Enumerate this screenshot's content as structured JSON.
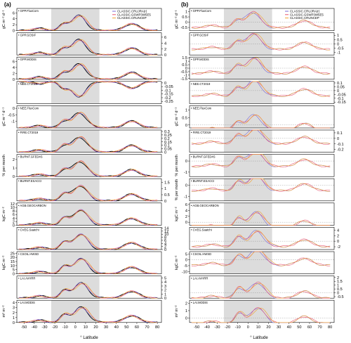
{
  "figure": {
    "panels": [
      {
        "id": "a",
        "label": "(a)"
      },
      {
        "id": "b",
        "label": "(b)"
      }
    ],
    "xlabel": "° Latitude",
    "xticks": [
      -50,
      -40,
      -30,
      -20,
      -10,
      0,
      10,
      20,
      30,
      40,
      50,
      60,
      70,
      80
    ],
    "xlim": [
      -57,
      84
    ],
    "shaded_region": [
      -23.5,
      23.5
    ],
    "shade_color": "#dcdcdc",
    "legend": [
      "CLASSIC.CRUJRA(r)",
      "CLASSIC.GSWP3W5E5",
      "CLASSIC.CRUNCEP"
    ],
    "colors": {
      "obs": "#000000",
      "s1": "#7b68d6",
      "s2": "#e8556f",
      "s3": "#f0a030"
    }
  },
  "chart_data": [
    {
      "type": "line",
      "panel": "a",
      "rows": [
        {
          "title": "GPP.FluxCom",
          "yticks": [
            0,
            2,
            4,
            6
          ],
          "ylim": [
            0,
            7.5
          ],
          "side": "left",
          "unit": "gC m⁻² d⁻¹"
        },
        {
          "title": "GPP.GOSIF",
          "yticks": [
            0,
            2,
            4,
            6
          ],
          "ylim": [
            0,
            7.5
          ],
          "side": "right",
          "unit": ""
        },
        {
          "title": "GPP.MODIS",
          "yticks": [
            0,
            2,
            4,
            6
          ],
          "ylim": [
            0,
            7.5
          ],
          "side": "left",
          "unit": ""
        },
        {
          "title": "NEE.CT2019",
          "yticks": [
            0.0,
            -0.05,
            -0.1,
            -0.15,
            -0.2,
            -0.25
          ],
          "ylim": [
            -0.28,
            0.02
          ],
          "side": "right",
          "unit": ""
        },
        {
          "title": "NEE.FluxCom",
          "yticks": [
            0.0,
            -0.5,
            -1.0
          ],
          "ylim": [
            -1.5,
            0.2
          ],
          "side": "left",
          "unit": "gC m⁻² d⁻¹"
        },
        {
          "title": "FIRE.CT2019",
          "yticks": [
            0.0,
            0.05,
            0.1,
            0.15,
            0.2,
            0.25,
            0.3
          ],
          "ylim": [
            0,
            0.32
          ],
          "side": "right",
          "unit": ""
        },
        {
          "title": "BURNT.GFED4S",
          "yticks": [
            0,
            1,
            2
          ],
          "ylim": [
            0,
            2.6
          ],
          "side": "left",
          "unit": "% per month"
        },
        {
          "title": "BURNT.ESACCI",
          "yticks": [
            0.0,
            0.5,
            1.0,
            1.5
          ],
          "ylim": [
            0,
            1.8
          ],
          "side": "right",
          "unit": ""
        },
        {
          "title": "AGB.GEOCARBON",
          "yticks": [
            0,
            2,
            4,
            6,
            8,
            10,
            12
          ],
          "ylim": [
            0,
            12.5
          ],
          "side": "left",
          "unit": "kgC m⁻²"
        },
        {
          "title": "CVEG.Saatchi",
          "yticks": [
            0,
            2,
            4,
            6,
            8,
            10,
            12,
            14
          ],
          "ylim": [
            0,
            14.5
          ],
          "side": "right",
          "unit": ""
        },
        {
          "title": "CSOIL.HWSD",
          "yticks": [
            0,
            5,
            10,
            15,
            20,
            25
          ],
          "ylim": [
            0,
            27
          ],
          "side": "left",
          "unit": "kgC m⁻²"
        },
        {
          "title": "LAI.AVHRR",
          "yticks": [
            0,
            1,
            2,
            3,
            4,
            5
          ],
          "ylim": [
            0,
            5.5
          ],
          "side": "right",
          "unit": ""
        },
        {
          "title": "LAI.MODIS",
          "yticks": [
            0,
            1,
            2,
            3,
            4
          ],
          "ylim": [
            0,
            4.5
          ],
          "side": "left",
          "unit": "m² m⁻²"
        }
      ]
    },
    {
      "type": "line",
      "panel": "b",
      "rows": [
        {
          "title": "GPP.FluxCom",
          "yticks": [
            -0.5,
            0.0,
            0.5,
            1.0
          ],
          "ylim": [
            -0.8,
            1.3
          ],
          "side": "left",
          "unit": "gC m⁻² d⁻¹"
        },
        {
          "title": "GPP.GOSIF",
          "yticks": [
            1.0,
            0.5,
            0.0,
            -0.5,
            -1.0
          ],
          "ylim": [
            -1.3,
            1.3
          ],
          "side": "right",
          "unit": ""
        },
        {
          "title": "GPP.MODIS",
          "yticks": [
            -1.5,
            -1.0,
            -0.5,
            0.0,
            0.5,
            1.0,
            1.5
          ],
          "ylim": [
            -1.6,
            1.6
          ],
          "side": "left",
          "unit": ""
        },
        {
          "title": "NEE.CT2019",
          "yticks": [
            0.1,
            0.05,
            0.0,
            -0.05,
            -0.1,
            -0.15
          ],
          "ylim": [
            -0.17,
            0.12
          ],
          "side": "right",
          "unit": ""
        },
        {
          "title": "NEE.FluxCom",
          "yticks": [
            0.0,
            0.5,
            1.0
          ],
          "ylim": [
            -0.2,
            1.3
          ],
          "side": "left",
          "unit": "gC m⁻² d⁻¹"
        },
        {
          "title": "FIRE.CT2019",
          "yticks": [
            0.1,
            0.0,
            -0.1,
            -0.2
          ],
          "ylim": [
            -0.25,
            0.15
          ],
          "side": "right",
          "unit": ""
        },
        {
          "title": "BURNT.GFED4S",
          "yticks": [
            -1,
            0
          ],
          "ylim": [
            -1.4,
            0.6
          ],
          "side": "left",
          "unit": "% per month"
        },
        {
          "title": "BURNT.ESACCI",
          "yticks": [
            -1,
            0
          ],
          "ylim": [
            -1.4,
            0.6
          ],
          "side": "left",
          "unit": "% per month"
        },
        {
          "title": "AGB.GEOCARBON",
          "yticks": [
            0,
            2,
            4,
            6
          ],
          "ylim": [
            -1,
            6.5
          ],
          "side": "left",
          "unit": "kgC m⁻²"
        },
        {
          "title": "CVEG.Saatchi",
          "yticks": [
            4,
            2,
            0,
            -2
          ],
          "ylim": [
            -3,
            5
          ],
          "side": "right",
          "unit": ""
        },
        {
          "title": "CSOIL.HWSD",
          "yticks": [
            -10,
            -5,
            0,
            5
          ],
          "ylim": [
            -12,
            7
          ],
          "side": "left",
          "unit": "kgC m⁻²"
        },
        {
          "title": "LAI.AVHRR",
          "yticks": [
            2.0,
            1.5,
            1.0,
            0.5,
            0.0,
            -0.5
          ],
          "ylim": [
            -0.7,
            2.2
          ],
          "side": "right",
          "unit": ""
        },
        {
          "title": "LAI.MODIS",
          "yticks": [
            0,
            1,
            2
          ],
          "ylim": [
            -0.6,
            2.4
          ],
          "side": "left",
          "unit": "m² m⁻²"
        }
      ]
    }
  ]
}
